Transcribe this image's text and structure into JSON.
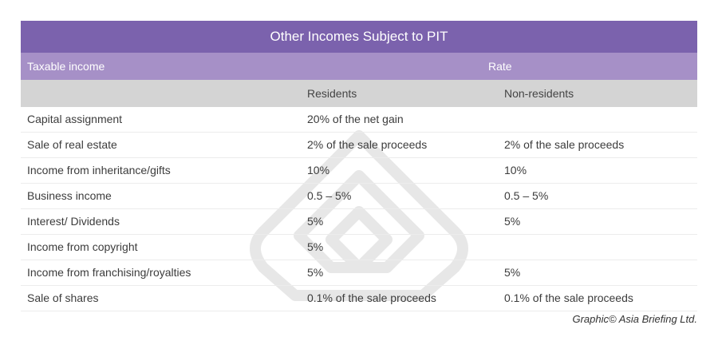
{
  "title": "Other Incomes Subject to PIT",
  "header": {
    "taxable_income": "Taxable income",
    "rate": "Rate"
  },
  "subheader": {
    "residents": "Residents",
    "non_residents": "Non-residents"
  },
  "rows": [
    {
      "income": "Capital assignment",
      "residents": "20% of the net gain",
      "non_residents": ""
    },
    {
      "income": "Sale of real estate",
      "residents": "2% of the sale proceeds",
      "non_residents": "2% of the sale proceeds"
    },
    {
      "income": "Income from inheritance/gifts",
      "residents": "10%",
      "non_residents": "10%"
    },
    {
      "income": "Business income",
      "residents": "0.5 – 5%",
      "non_residents": "0.5 – 5%"
    },
    {
      "income": "Interest/ Dividends",
      "residents": "5%",
      "non_residents": "5%"
    },
    {
      "income": "Income from copyright",
      "residents": "5%",
      "non_residents": ""
    },
    {
      "income": "Income from franchising/royalties",
      "residents": "5%",
      "non_residents": "5%"
    },
    {
      "income": "Sale of shares",
      "residents": "0.1% of the sale proceeds",
      "non_residents": "0.1% of the sale proceeds"
    }
  ],
  "credit": "Graphic© Asia Briefing Ltd."
}
